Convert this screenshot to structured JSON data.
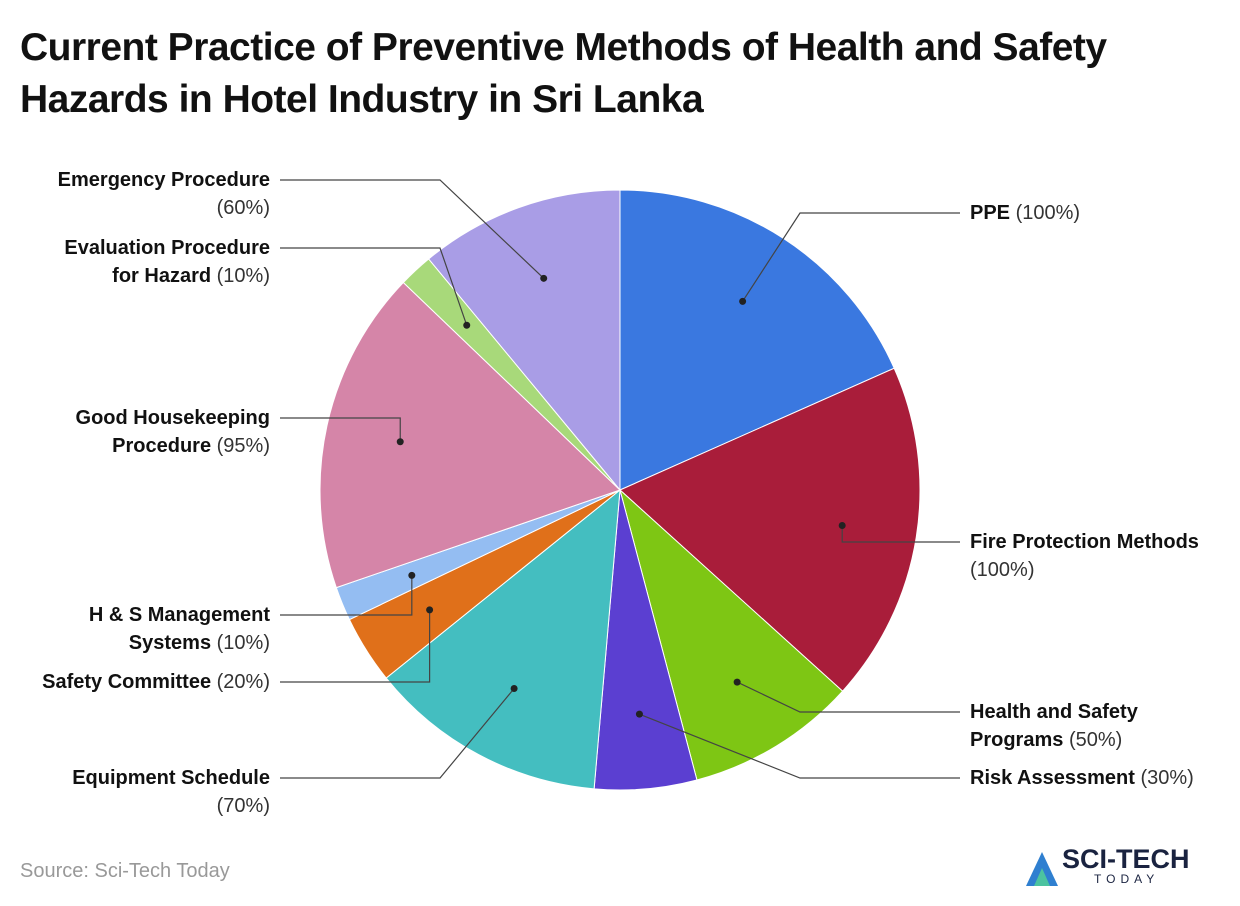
{
  "chart_data": {
    "type": "pie",
    "title": "Current Practice of Preventive Methods of Health and Safety Hazards in Hotel Industry in Sri Lanka",
    "categories": [
      "PPE",
      "Fire Protection Methods",
      "Health and Safety Programs",
      "Risk Assessment",
      "Equipment Schedule",
      "Safety Committee",
      "H & S Management Systems",
      "Good Housekeeping Procedure",
      "Evaluation Procedure for Hazard",
      "Emergency Procedure"
    ],
    "values": [
      100,
      100,
      50,
      30,
      70,
      20,
      10,
      95,
      10,
      60
    ],
    "value_labels": [
      "(100%)",
      "(100%)",
      "(50%)",
      "(30%)",
      "(70%)",
      "(20%)",
      "(10%)",
      "(95%)",
      "(10%)",
      "(60%)"
    ],
    "colors": [
      "#3a78e0",
      "#a91d3a",
      "#7ec614",
      "#5b3fd1",
      "#44bec0",
      "#e0701a",
      "#94bdf2",
      "#d585a8",
      "#a8d97a",
      "#a99de6"
    ],
    "source": "Source: Sci-Tech Today",
    "logo": {
      "main": "SCI-TECH",
      "sub": "TODAY"
    }
  }
}
